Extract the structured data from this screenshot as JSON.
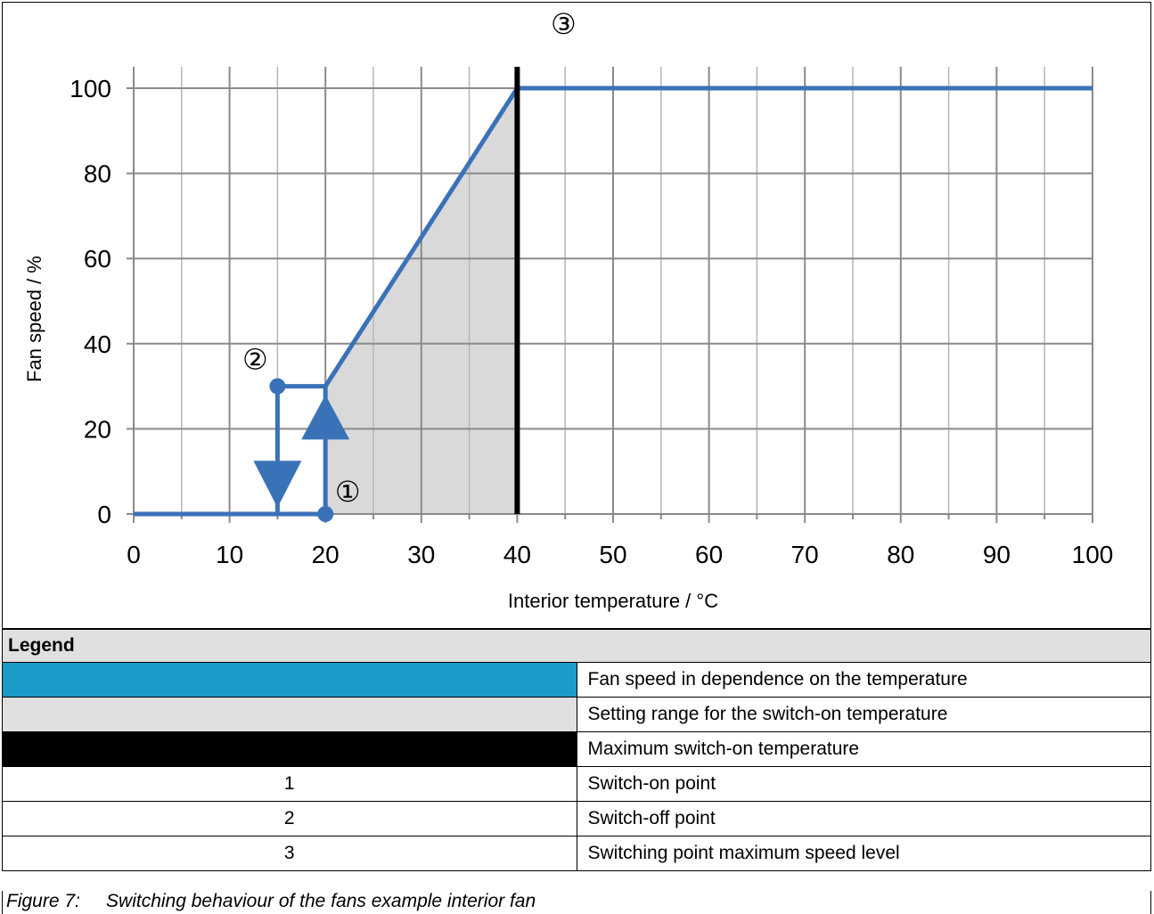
{
  "chart_data": {
    "type": "line",
    "xlabel": "Interior temperature / °C",
    "ylabel": "Fan speed / %",
    "xlim": [
      0,
      100
    ],
    "ylim": [
      0,
      100
    ],
    "x_ticks": [
      0,
      10,
      20,
      30,
      40,
      50,
      60,
      70,
      80,
      90,
      100
    ],
    "y_ticks": [
      0,
      20,
      40,
      60,
      80,
      100
    ],
    "x_minor_step": 5,
    "grid": true,
    "series": [
      {
        "color": "#3a72b8",
        "points": [
          [
            0,
            0
          ],
          [
            15,
            0
          ],
          [
            20,
            0
          ],
          [
            20,
            30
          ],
          [
            40,
            100
          ],
          [
            100,
            100
          ]
        ]
      }
    ],
    "hysteresis": {
      "switch_off_x": 15,
      "switch_off_y": 30,
      "switch_on_x": 20,
      "switch_on_y": 0
    },
    "shaded_region": {
      "color": "#d9d9d9",
      "x_from": 20,
      "x_to": 40
    },
    "vertical_line": {
      "x": 40,
      "color": "#000000"
    },
    "annotations": [
      {
        "label": "①",
        "x": 20,
        "y": 0
      },
      {
        "label": "②",
        "x": 15,
        "y": 30
      },
      {
        "label": "③",
        "x": 40,
        "y": 100
      }
    ]
  },
  "legend": {
    "title": "Legend",
    "rows": [
      {
        "key_color": "#1a9bc8",
        "text": "Fan speed in dependence on the temperature"
      },
      {
        "key_color": "#e0e0e0",
        "text": "Setting range for the switch-on temperature"
      },
      {
        "key_color": "#000000",
        "text": "Maximum switch-on temperature"
      },
      {
        "key": "1",
        "text": "Switch-on point"
      },
      {
        "key": "2",
        "text": "Switch-off point"
      },
      {
        "key": "3",
        "text": "Switching point maximum speed level"
      }
    ]
  },
  "caption": "Figure 7:     Switching behaviour of the fans example interior fan"
}
